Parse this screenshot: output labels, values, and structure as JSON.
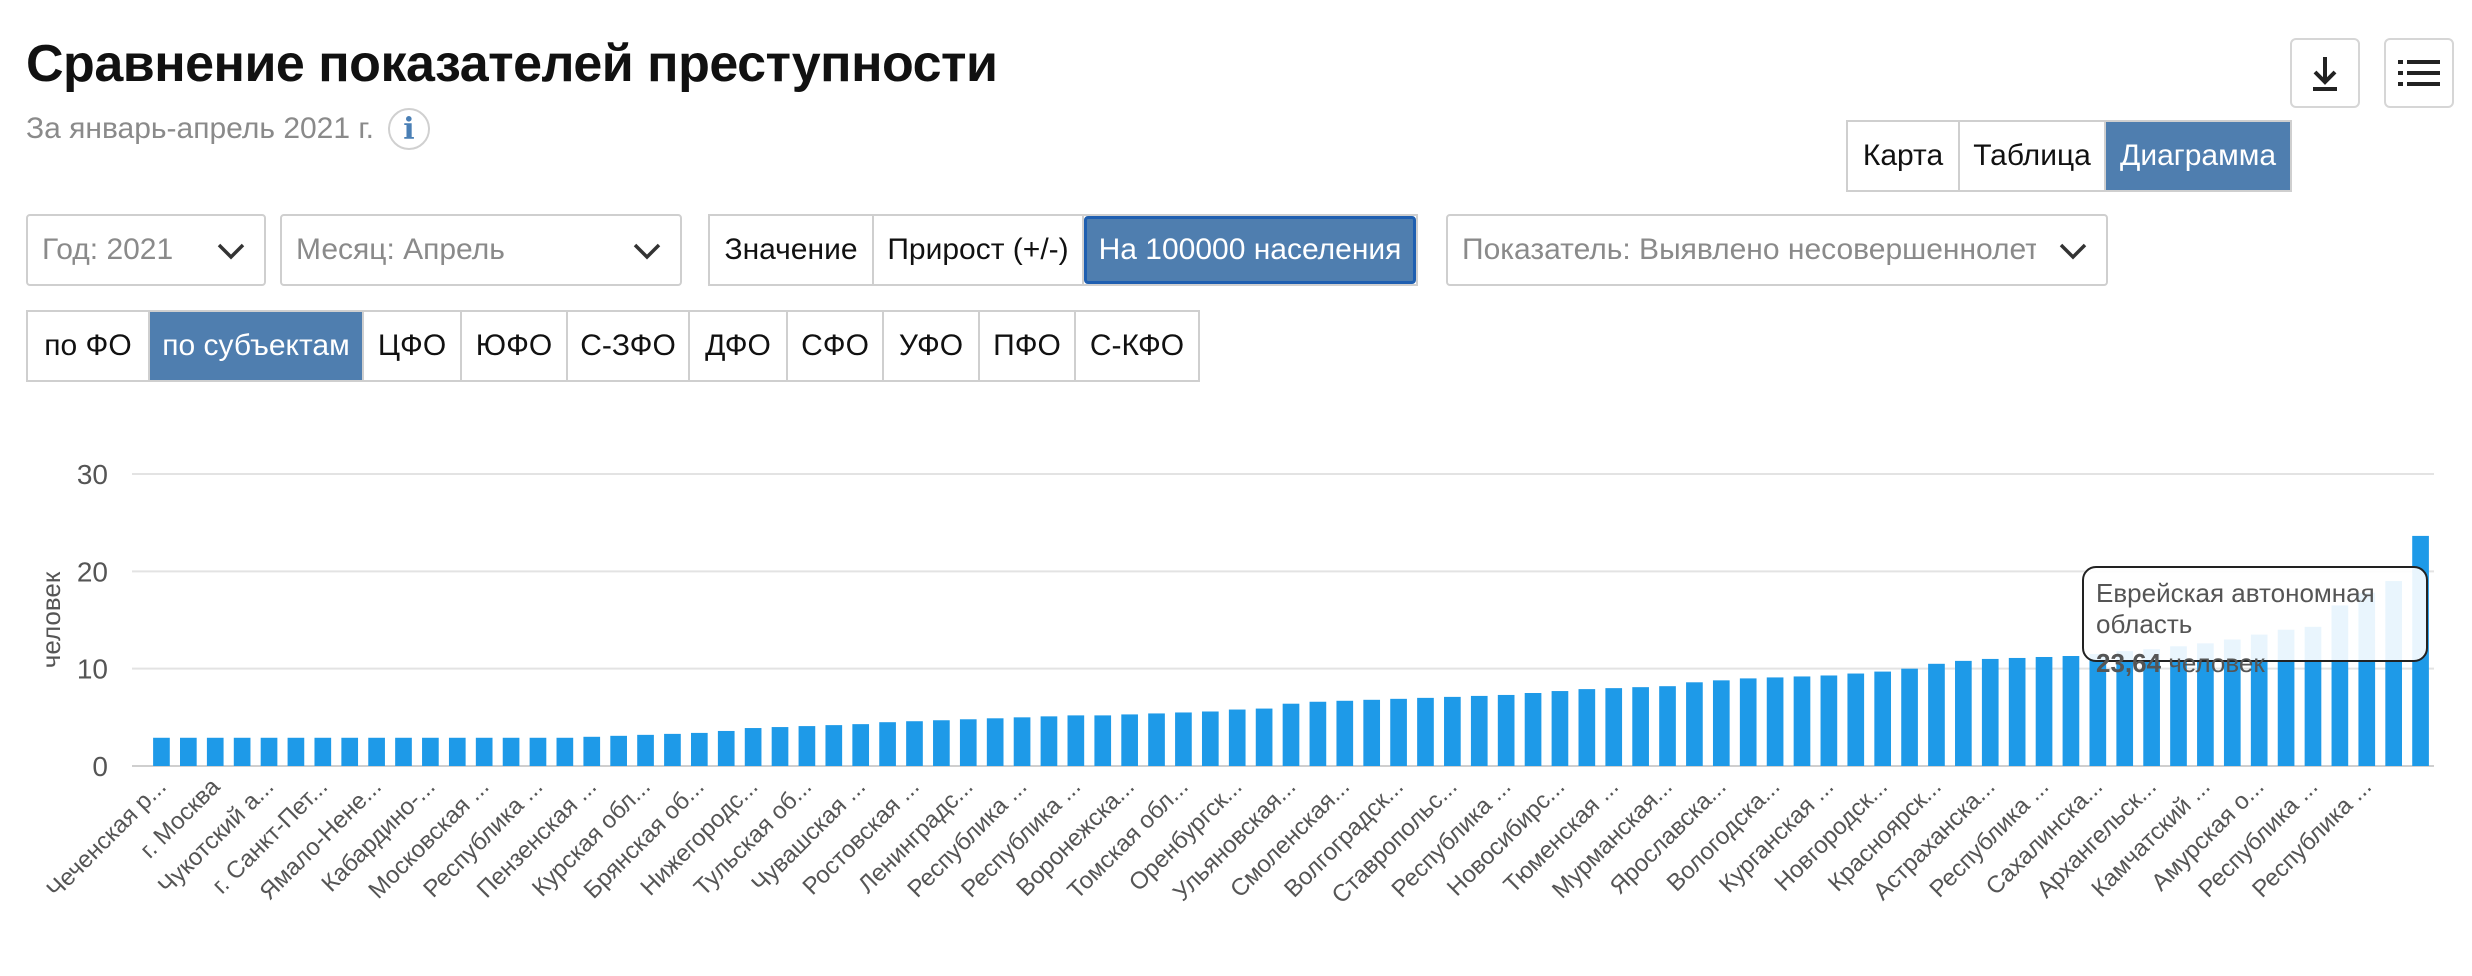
{
  "header": {
    "title": "Сравнение показателей преступности",
    "subtitle": "За январь-апрель 2021 г.",
    "info_glyph": "i",
    "download_icon": "download-icon",
    "menu_icon": "menu-icon"
  },
  "view_tabs": [
    {
      "label": "Карта",
      "active": false
    },
    {
      "label": "Таблица",
      "active": false
    },
    {
      "label": "Диаграмма",
      "active": true
    }
  ],
  "filters": {
    "year": "Год: 2021",
    "month": "Месяц: Апрель",
    "indicator": "Показатель: Выявлено несовершеннолетн"
  },
  "mode_tabs": [
    {
      "label": "Значение",
      "active": false
    },
    {
      "label": "Прирост (+/-)",
      "active": false
    },
    {
      "label": "На 100000 населения",
      "active": true
    }
  ],
  "region_tabs": [
    {
      "label": "по ФО",
      "active": false
    },
    {
      "label": "по субъектам",
      "active": true
    },
    {
      "label": "ЦФО",
      "active": false
    },
    {
      "label": "ЮФО",
      "active": false
    },
    {
      "label": "С-ЗФО",
      "active": false
    },
    {
      "label": "ДФО",
      "active": false
    },
    {
      "label": "СФО",
      "active": false
    },
    {
      "label": "УФО",
      "active": false
    },
    {
      "label": "ПФО",
      "active": false
    },
    {
      "label": "С-КФО",
      "active": false
    }
  ],
  "tooltip": {
    "name": "Еврейская автономная область",
    "value": "23,64",
    "unit": "человек"
  },
  "colors": {
    "bar": "#1e9ae8",
    "accent": "#4f7eaf",
    "grid": "#e3e3e3"
  },
  "chart_data": {
    "type": "bar",
    "ylabel": "человек",
    "ylim": [
      0,
      30
    ],
    "yticks": [
      0,
      10,
      20,
      30
    ],
    "grid": true,
    "highlighted_index": 84,
    "categories": [
      "Чеченская р...",
      "",
      "г. Москва",
      "",
      "Чукотский а...",
      "",
      "г. Санкт-Пет...",
      "",
      "Ямало-Нене...",
      "",
      "Кабардино-...",
      "",
      "Московская ...",
      "",
      "Республика ...",
      "",
      "Пензенская ...",
      "",
      "Курская обл...",
      "",
      "Брянская об...",
      "",
      "Нижегородс...",
      "",
      "Тульская об...",
      "",
      "Чувашская ...",
      "",
      "Ростовская ...",
      "",
      "Ленинградс...",
      "",
      "Республика ...",
      "",
      "Республика ...",
      "",
      "Воронежска...",
      "",
      "Томская обл...",
      "",
      "Оренбургск...",
      "",
      "Ульяновская...",
      "",
      "Смоленская...",
      "",
      "Волгоградск...",
      "",
      "Ставропольс...",
      "",
      "Республика ...",
      "",
      "Новосибирс...",
      "",
      "Тюменская ...",
      "",
      "Мурманская...",
      "",
      "Ярославска...",
      "",
      "Вологодска...",
      "",
      "Курганская ...",
      "",
      "Новгородск...",
      "",
      "Красноярск...",
      "",
      "Астраханска...",
      "",
      "Республика ...",
      "",
      "Сахалинска...",
      "",
      "Архангельск...",
      "",
      "Камчатский ...",
      "",
      "Амурская о...",
      "",
      "Республика ...",
      "",
      "Республика ...",
      "",
      "Еврейская автономная область"
    ],
    "values": [
      2.9,
      2.9,
      2.9,
      2.9,
      2.9,
      2.9,
      2.9,
      2.9,
      2.9,
      2.9,
      2.9,
      2.9,
      2.9,
      2.9,
      2.9,
      2.9,
      3.0,
      3.1,
      3.2,
      3.3,
      3.4,
      3.6,
      3.9,
      4.0,
      4.1,
      4.2,
      4.3,
      4.5,
      4.6,
      4.7,
      4.8,
      4.9,
      5.0,
      5.1,
      5.2,
      5.2,
      5.3,
      5.4,
      5.5,
      5.6,
      5.8,
      5.9,
      6.4,
      6.6,
      6.7,
      6.8,
      6.9,
      7.0,
      7.1,
      7.2,
      7.3,
      7.5,
      7.7,
      7.9,
      8.0,
      8.1,
      8.2,
      8.6,
      8.8,
      9.0,
      9.1,
      9.2,
      9.3,
      9.5,
      9.7,
      10.0,
      10.5,
      10.8,
      11.0,
      11.1,
      11.2,
      11.3,
      11.5,
      11.8,
      12.0,
      12.3,
      12.6,
      13.0,
      13.5,
      14.0,
      14.3,
      16.5,
      17.8,
      19.0,
      23.64
    ]
  }
}
